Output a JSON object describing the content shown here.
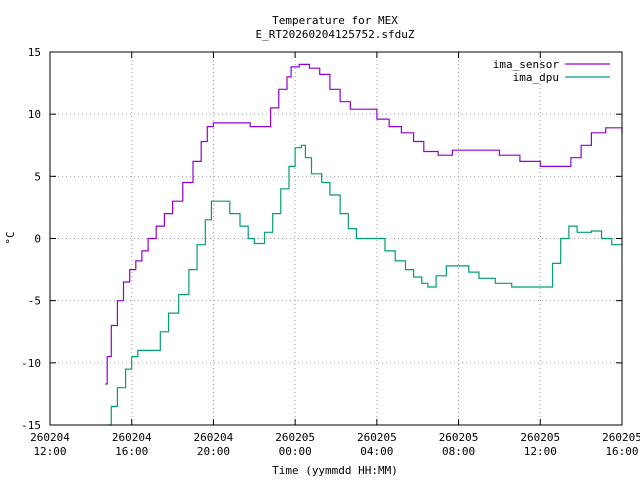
{
  "chart_data": {
    "type": "line",
    "title": "Temperature for MEX",
    "subtitle": "E_RT20260204125752.sfduZ",
    "xlabel": "Time (yymmdd HH:MM)",
    "ylabel": "°C",
    "ylim": [
      -15,
      15
    ],
    "xlim_hours": [
      12,
      40
    ],
    "grid": true,
    "legend_position": "top-right",
    "y_ticks": [
      -15,
      -10,
      -5,
      0,
      5,
      10,
      15
    ],
    "x_ticks": [
      {
        "h": 12,
        "date": "260204",
        "time": "12:00"
      },
      {
        "h": 16,
        "date": "260204",
        "time": "16:00"
      },
      {
        "h": 20,
        "date": "260204",
        "time": "20:00"
      },
      {
        "h": 24,
        "date": "260205",
        "time": "00:00"
      },
      {
        "h": 28,
        "date": "260205",
        "time": "04:00"
      },
      {
        "h": 32,
        "date": "260205",
        "time": "08:00"
      },
      {
        "h": 36,
        "date": "260205",
        "time": "12:00"
      },
      {
        "h": 40,
        "date": "260205",
        "time": "16:00"
      }
    ],
    "series": [
      {
        "name": "ima_sensor",
        "color": "#9400d3",
        "points": [
          [
            14.7,
            -11.7
          ],
          [
            14.8,
            -9.5
          ],
          [
            15.0,
            -7.0
          ],
          [
            15.3,
            -5.0
          ],
          [
            15.6,
            -3.5
          ],
          [
            15.9,
            -2.5
          ],
          [
            16.2,
            -1.8
          ],
          [
            16.5,
            -1.0
          ],
          [
            16.8,
            0.0
          ],
          [
            17.2,
            1.0
          ],
          [
            17.6,
            2.0
          ],
          [
            18.0,
            3.0
          ],
          [
            18.5,
            4.5
          ],
          [
            19.0,
            6.2
          ],
          [
            19.4,
            7.8
          ],
          [
            19.7,
            9.0
          ],
          [
            20.0,
            9.3
          ],
          [
            21.0,
            9.3
          ],
          [
            21.8,
            9.0
          ],
          [
            22.4,
            9.0
          ],
          [
            22.8,
            10.5
          ],
          [
            23.2,
            12.0
          ],
          [
            23.6,
            13.0
          ],
          [
            23.8,
            13.8
          ],
          [
            24.2,
            14.0
          ],
          [
            24.7,
            13.7
          ],
          [
            25.2,
            13.2
          ],
          [
            25.7,
            12.0
          ],
          [
            26.2,
            11.0
          ],
          [
            26.7,
            10.4
          ],
          [
            27.5,
            10.4
          ],
          [
            28.0,
            9.6
          ],
          [
            28.6,
            9.0
          ],
          [
            29.2,
            8.5
          ],
          [
            29.8,
            7.8
          ],
          [
            30.3,
            7.0
          ],
          [
            31.0,
            6.7
          ],
          [
            31.7,
            7.1
          ],
          [
            33.0,
            7.1
          ],
          [
            34.0,
            6.7
          ],
          [
            35.0,
            6.2
          ],
          [
            36.0,
            5.8
          ],
          [
            37.0,
            5.8
          ],
          [
            37.5,
            6.5
          ],
          [
            38.0,
            7.5
          ],
          [
            38.5,
            8.5
          ],
          [
            39.2,
            8.9
          ],
          [
            39.8,
            8.9
          ],
          [
            40.0,
            8.5
          ]
        ]
      },
      {
        "name": "ima_dpu",
        "color": "#009e73",
        "points": [
          [
            14.8,
            -15.0
          ],
          [
            15.0,
            -13.5
          ],
          [
            15.3,
            -12.0
          ],
          [
            15.7,
            -10.5
          ],
          [
            16.0,
            -9.5
          ],
          [
            16.3,
            -9.0
          ],
          [
            17.0,
            -9.0
          ],
          [
            17.4,
            -7.5
          ],
          [
            17.8,
            -6.0
          ],
          [
            18.3,
            -4.5
          ],
          [
            18.8,
            -2.5
          ],
          [
            19.2,
            -0.5
          ],
          [
            19.6,
            1.5
          ],
          [
            19.9,
            3.0
          ],
          [
            20.3,
            3.0
          ],
          [
            20.8,
            2.0
          ],
          [
            21.3,
            1.0
          ],
          [
            21.7,
            0.0
          ],
          [
            22.0,
            -0.4
          ],
          [
            22.5,
            0.5
          ],
          [
            22.9,
            2.0
          ],
          [
            23.3,
            4.0
          ],
          [
            23.7,
            5.8
          ],
          [
            24.0,
            7.3
          ],
          [
            24.3,
            7.5
          ],
          [
            24.5,
            6.5
          ],
          [
            24.8,
            5.2
          ],
          [
            25.3,
            4.5
          ],
          [
            25.7,
            3.5
          ],
          [
            26.2,
            2.0
          ],
          [
            26.6,
            0.8
          ],
          [
            27.0,
            0.0
          ],
          [
            27.5,
            0.0
          ],
          [
            28.0,
            0.0
          ],
          [
            28.4,
            -1.0
          ],
          [
            28.9,
            -1.8
          ],
          [
            29.4,
            -2.5
          ],
          [
            29.8,
            -3.1
          ],
          [
            30.2,
            -3.6
          ],
          [
            30.5,
            -3.9
          ],
          [
            30.9,
            -3.0
          ],
          [
            31.4,
            -2.2
          ],
          [
            32.0,
            -2.2
          ],
          [
            32.5,
            -2.7
          ],
          [
            33.0,
            -3.2
          ],
          [
            33.8,
            -3.6
          ],
          [
            34.6,
            -3.9
          ],
          [
            35.5,
            -3.9
          ],
          [
            36.1,
            -3.9
          ],
          [
            36.6,
            -2.0
          ],
          [
            37.0,
            0.0
          ],
          [
            37.4,
            1.0
          ],
          [
            37.8,
            0.5
          ],
          [
            38.5,
            0.6
          ],
          [
            39.0,
            0.0
          ],
          [
            39.5,
            -0.5
          ],
          [
            40.0,
            -0.4
          ]
        ]
      }
    ]
  }
}
